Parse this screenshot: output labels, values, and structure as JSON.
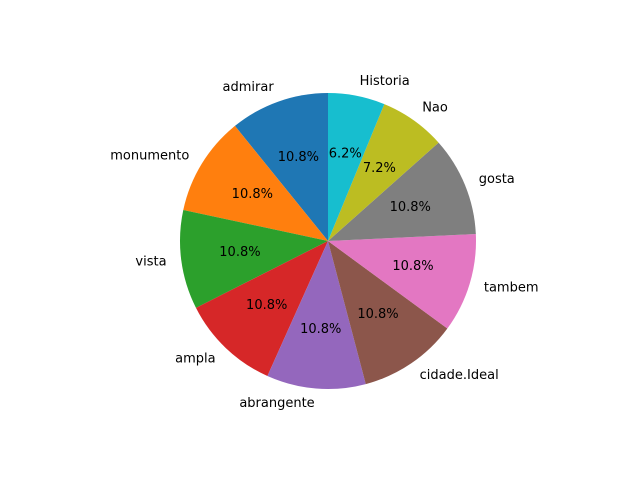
{
  "chart_data": {
    "type": "pie",
    "start_angle_deg": 90,
    "direction": "counterclockwise",
    "slices": [
      {
        "label": "admirar",
        "value": 10.8,
        "pct_label": "10.8%",
        "color": "#1f77b4"
      },
      {
        "label": "monumento",
        "value": 10.8,
        "pct_label": "10.8%",
        "color": "#ff7f0e"
      },
      {
        "label": "vista",
        "value": 10.8,
        "pct_label": "10.8%",
        "color": "#2ca02c"
      },
      {
        "label": "ampla",
        "value": 10.8,
        "pct_label": "10.8%",
        "color": "#d62728"
      },
      {
        "label": "abrangente",
        "value": 10.8,
        "pct_label": "10.8%",
        "color": "#9467bd"
      },
      {
        "label": "cidade.Ideal",
        "value": 10.8,
        "pct_label": "10.8%",
        "color": "#8c564b"
      },
      {
        "label": "tambem",
        "value": 10.8,
        "pct_label": "10.8%",
        "color": "#e377c2"
      },
      {
        "label": "gosta",
        "value": 10.8,
        "pct_label": "10.8%",
        "color": "#7f7f7f"
      },
      {
        "label": "Nao",
        "value": 7.2,
        "pct_label": "7.2%",
        "color": "#bcbd22"
      },
      {
        "label": "Historia",
        "value": 6.2,
        "pct_label": "6.2%",
        "color": "#17becf"
      }
    ]
  }
}
